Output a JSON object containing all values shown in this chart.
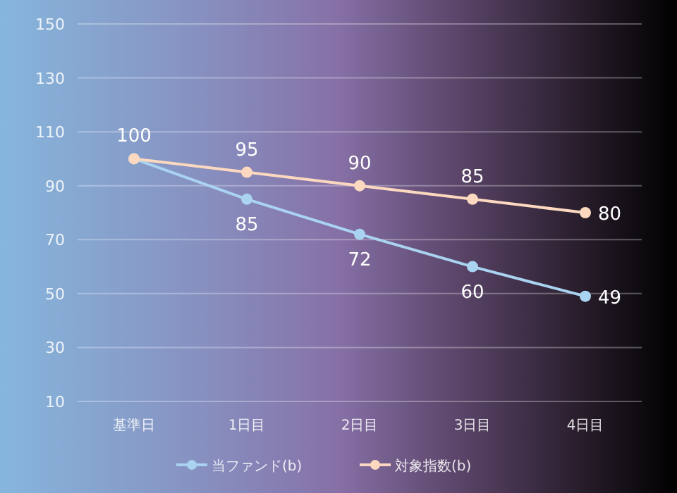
{
  "chart_data": {
    "type": "line",
    "categories": [
      "基準日",
      "1日目",
      "2日目",
      "3日目",
      "4日目"
    ],
    "series": [
      {
        "name": "当ファンド(b)",
        "color": "#a9d3f0",
        "values": [
          100,
          85,
          72,
          60,
          49
        ],
        "value_labels": [
          null,
          "85",
          "72",
          "60",
          "49"
        ]
      },
      {
        "name": "対象指数(b)",
        "color": "#fbd8bf",
        "values": [
          100,
          95,
          90,
          85,
          80
        ],
        "value_labels": [
          "100",
          "95",
          "90",
          "85",
          "80"
        ]
      }
    ],
    "ylim": [
      10,
      150
    ],
    "yticks": [
      10,
      30,
      50,
      70,
      90,
      110,
      130,
      150
    ],
    "grid": "y",
    "legend": "bottom",
    "marker": "circle",
    "line_style": "solid"
  }
}
